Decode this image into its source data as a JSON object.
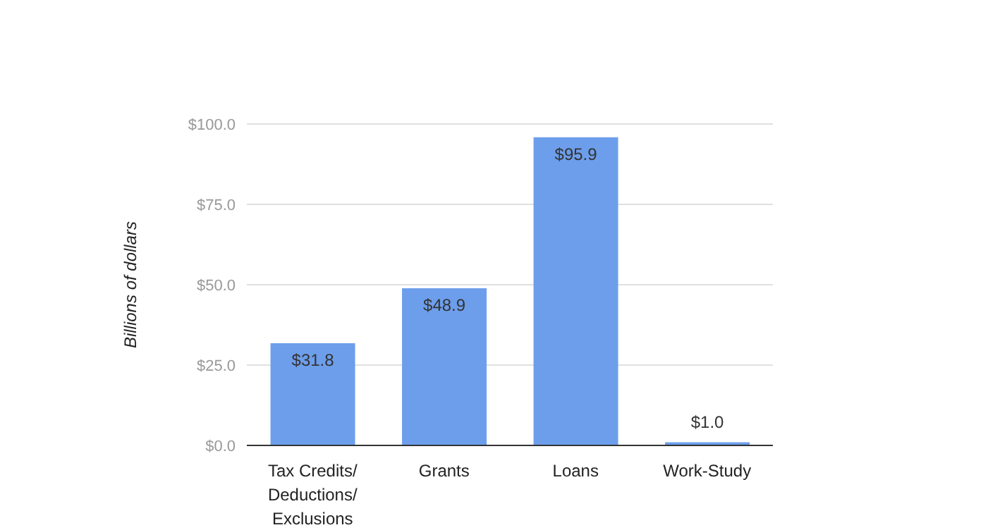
{
  "chart_data": {
    "type": "bar",
    "ylabel": "Billions of dollars",
    "categories": [
      "Tax Credits/ Deductions/ Exclusions",
      "Grants",
      "Loans",
      "Work-Study"
    ],
    "values": [
      31.8,
      48.9,
      95.9,
      1.0
    ],
    "value_labels": [
      "$31.8",
      "$48.9",
      "$95.9",
      "$1.0"
    ],
    "color": "#6d9eeb",
    "ylim": [
      0,
      100
    ],
    "yticks": [
      {
        "value": 0,
        "label": "$0.0"
      },
      {
        "value": 25,
        "label": "$25.0"
      },
      {
        "value": 50,
        "label": "$50.0"
      },
      {
        "value": 75,
        "label": "$75.0"
      },
      {
        "value": 100,
        "label": "$100.0"
      }
    ],
    "grid": "y"
  }
}
